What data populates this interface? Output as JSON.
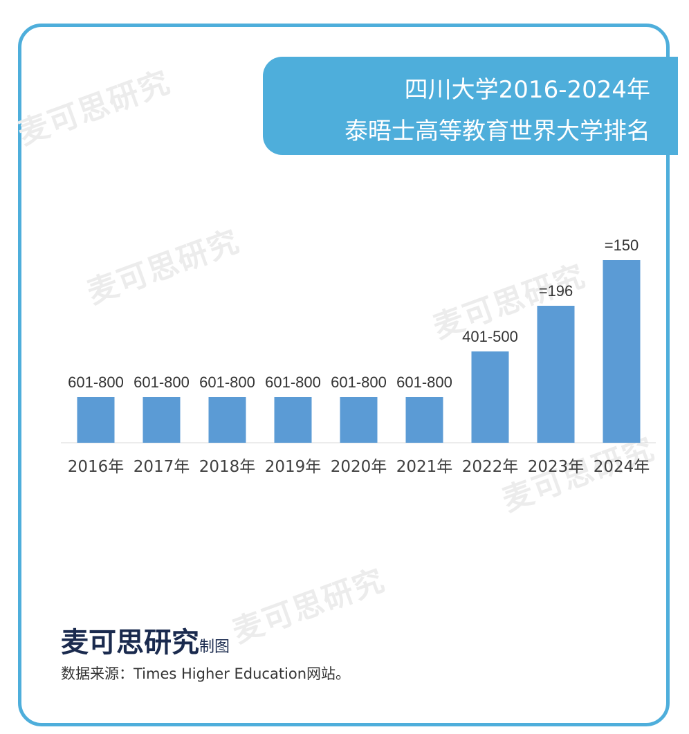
{
  "title": {
    "line1": "四川大学2016-2024年",
    "line2": "泰晤士高等教育世界大学排名"
  },
  "watermark": "麦可思研究",
  "brand": {
    "name": "麦可思研究",
    "suffix": "制图"
  },
  "source": "数据来源：Times Higher Education网站。",
  "colors": {
    "accent": "#4eaedb",
    "bar": "#5b9bd5",
    "brand": "#1a2a4e"
  },
  "chart_data": {
    "type": "bar",
    "title": "四川大学2016-2024年泰晤士高等教育世界大学排名",
    "categories": [
      "2016年",
      "2017年",
      "2018年",
      "2019年",
      "2020年",
      "2021年",
      "2022年",
      "2023年",
      "2024年"
    ],
    "labels": [
      "601-800",
      "601-800",
      "601-800",
      "601-800",
      "601-800",
      "601-800",
      "401-500",
      "=196",
      "=150"
    ],
    "values": [
      1,
      1,
      1,
      1,
      1,
      1,
      2,
      3,
      4
    ],
    "xlabel": "",
    "ylabel": "",
    "grid": false,
    "legend": "none"
  }
}
